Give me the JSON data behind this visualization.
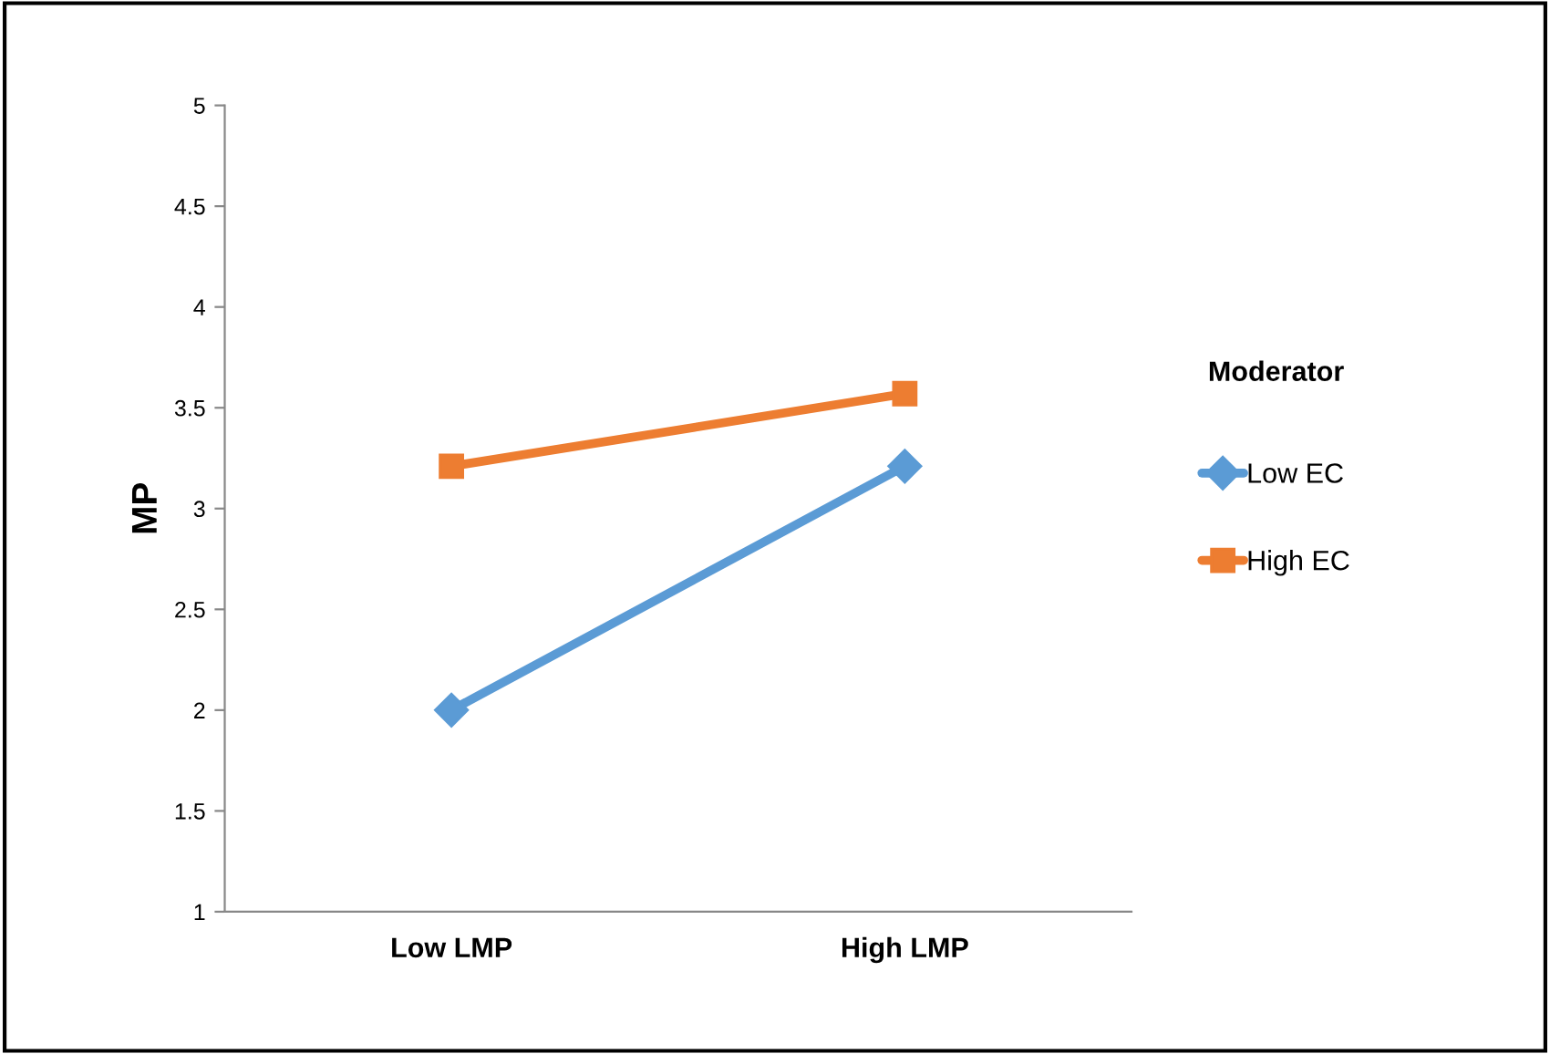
{
  "chart_data": {
    "type": "line",
    "ylabel": "MP",
    "legend_title": "Moderator",
    "categories": [
      "Low LMP",
      "High LMP"
    ],
    "series": [
      {
        "name": "Low EC",
        "color": "#5b9bd5",
        "marker": "diamond",
        "values": [
          2.0,
          3.21
        ]
      },
      {
        "name": "High EC",
        "color": "#ed7d31",
        "marker": "square",
        "values": [
          3.21,
          3.57
        ]
      }
    ],
    "ylim": [
      1,
      5
    ],
    "yticks": [
      1,
      1.5,
      2,
      2.5,
      3,
      3.5,
      4,
      4.5,
      5
    ],
    "grid": false,
    "legend": "right"
  }
}
